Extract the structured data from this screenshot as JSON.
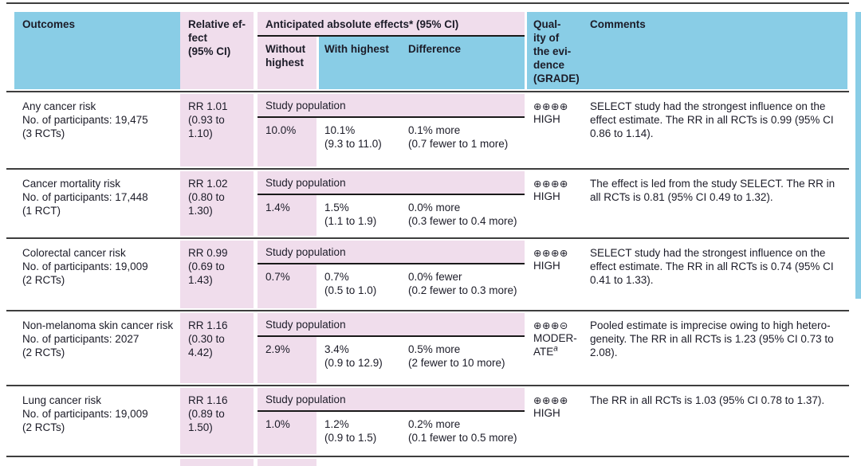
{
  "colors": {
    "header_blue": "#89CDE6",
    "cell_pink": "#F0DDEC"
  },
  "table": {
    "header": {
      "outcomes": "Outcomes",
      "relative_effect": "Relative ef-\nfect\n(95% CI)",
      "absolute_effects": "Anticipated absolute effects* (95% CI)",
      "without_highest": "Without highest",
      "with_highest": "With highest",
      "difference": "Difference",
      "quality": "Qual-\nity of\nthe evi-\ndence\n(GRADE)",
      "comments": "Comments"
    },
    "rows": [
      {
        "outcome": "Any cancer risk\nNo. of participants: 19,475\n(3 RCTs)",
        "relative_effect": "RR 1.01\n(0.93 to\n1.10)",
        "study_population": "Study population",
        "without_highest": "10.0%",
        "with_highest": "10.1%\n(9.3 to 11.0)",
        "difference": "0.1% more\n(0.7 fewer to 1 more)",
        "grade_symbols": "⊕⊕⊕⊕",
        "grade_label": "HIGH",
        "grade_superscript": "",
        "comment": "SELECT study had the strongest influence on the\neffect estimate. The RR in all RCTs is 0.99 (95% CI\n0.86 to 1.14)."
      },
      {
        "outcome": "Cancer mortality risk\nNo. of participants: 17,448\n(1 RCT)",
        "relative_effect": "RR 1.02\n(0.80 to\n1.30)",
        "study_population": "Study population",
        "without_highest": "1.4%",
        "with_highest": "1.5%\n(1.1 to 1.9)",
        "difference": "0.0% more\n(0.3 fewer to 0.4 more)",
        "grade_symbols": "⊕⊕⊕⊕",
        "grade_label": "HIGH",
        "grade_superscript": "",
        "comment": "The effect is led from the study SELECT. The RR in\nall RCTs is 0.81 (95% CI 0.49 to 1.32)."
      },
      {
        "outcome": "Colorectal cancer risk\nNo. of participants: 19,009\n(2 RCTs)",
        "relative_effect": "RR 0.99\n(0.69 to\n1.43)",
        "study_population": "Study population",
        "without_highest": "0.7%",
        "with_highest": "0.7%\n(0.5 to 1.0)",
        "difference": "0.0% fewer\n(0.2 fewer to 0.3 more)",
        "grade_symbols": "⊕⊕⊕⊕",
        "grade_label": "HIGH",
        "grade_superscript": "",
        "comment": "SELECT study had the strongest influence on the\neffect estimate. The RR in all RCTs is 0.74 (95% CI\n0.41 to 1.33)."
      },
      {
        "outcome": "Non-melanoma skin cancer risk\nNo. of participants: 2027\n(2 RCTs)",
        "relative_effect": "RR 1.16\n(0.30 to\n4.42)",
        "study_population": "Study population",
        "without_highest": "2.9%",
        "with_highest": "3.4%\n(0.9 to 12.9)",
        "difference": "0.5% more\n(2 fewer to 10 more)",
        "grade_symbols": "⊕⊕⊕⊝",
        "grade_label": "MODER-\nATE",
        "grade_superscript": "a",
        "comment": "Pooled estimate is imprecise owing to high hetero-\ngeneity. The RR in all RCTs is 1.23 (95% CI 0.73 to\n2.08)."
      },
      {
        "outcome": "Lung cancer risk\nNo. of participants: 19,009\n(2 RCTs)",
        "relative_effect": "RR 1.16\n(0.89 to\n1.50)",
        "study_population": "Study population",
        "without_highest": "1.0%",
        "with_highest": "1.2%\n(0.9 to 1.5)",
        "difference": "0.2% more\n(0.1 fewer to 0.5 more)",
        "grade_symbols": "⊕⊕⊕⊕",
        "grade_label": "HIGH",
        "grade_superscript": "",
        "comment": "The RR in all RCTs is 1.03 (95% CI 0.78 to 1.37)."
      }
    ]
  }
}
